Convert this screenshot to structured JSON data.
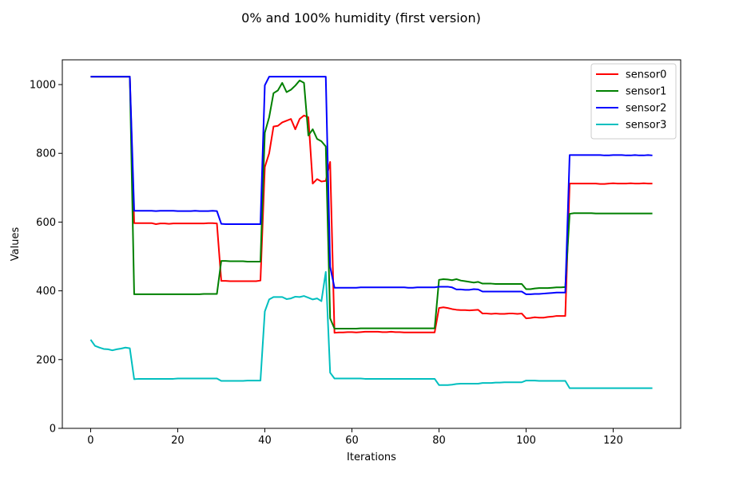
{
  "chart_data": {
    "type": "line",
    "title": "0% and 100% humidity (first version)",
    "xlabel": "Iterations",
    "ylabel": "Values",
    "xlim": [
      -6.5,
      135.5
    ],
    "ylim": [
      0,
      1072
    ],
    "xticks": [
      0,
      20,
      40,
      60,
      80,
      100,
      120
    ],
    "yticks": [
      0,
      200,
      400,
      600,
      800,
      1000
    ],
    "legend_position": "top-right",
    "series": [
      {
        "name": "sensor0",
        "color": "#ff0000",
        "values": [
          1023,
          1023,
          1023,
          1023,
          1023,
          1023,
          1023,
          1023,
          1023,
          1023,
          597,
          597,
          597,
          597,
          597,
          594,
          596,
          596,
          595,
          596,
          596,
          596,
          596,
          596,
          596,
          596,
          596,
          597,
          597,
          596,
          429,
          429,
          428,
          428,
          428,
          428,
          428,
          428,
          428,
          430,
          760,
          800,
          878,
          880,
          890,
          895,
          900,
          870,
          900,
          910,
          905,
          712,
          725,
          718,
          720,
          775,
          278,
          279,
          279,
          280,
          280,
          279,
          280,
          281,
          281,
          281,
          281,
          280,
          280,
          281,
          280,
          280,
          279,
          279,
          279,
          279,
          279,
          279,
          279,
          279,
          350,
          352,
          350,
          347,
          345,
          344,
          344,
          343,
          344,
          345,
          334,
          334,
          333,
          334,
          333,
          333,
          334,
          334,
          333,
          334,
          320,
          321,
          323,
          322,
          322,
          324,
          325,
          327,
          327,
          327,
          712,
          712,
          712,
          712,
          712,
          712,
          712,
          711,
          711,
          712,
          713,
          712,
          712,
          712,
          713,
          712,
          712,
          713,
          712,
          712
        ]
      },
      {
        "name": "sensor1",
        "color": "#008000",
        "values": [
          1023,
          1023,
          1023,
          1023,
          1023,
          1023,
          1023,
          1023,
          1023,
          1023,
          390,
          390,
          390,
          390,
          390,
          390,
          390,
          390,
          390,
          390,
          390,
          390,
          390,
          390,
          390,
          390,
          391,
          391,
          391,
          391,
          487,
          487,
          486,
          486,
          486,
          486,
          485,
          485,
          485,
          485,
          860,
          905,
          975,
          983,
          1005,
          978,
          985,
          997,
          1012,
          1005,
          852,
          870,
          842,
          835,
          820,
          320,
          290,
          290,
          290,
          290,
          290,
          290,
          291,
          291,
          291,
          291,
          291,
          291,
          291,
          291,
          291,
          291,
          291,
          291,
          291,
          291,
          291,
          291,
          291,
          291,
          432,
          434,
          433,
          431,
          434,
          430,
          428,
          426,
          424,
          426,
          421,
          421,
          421,
          420,
          420,
          420,
          420,
          420,
          420,
          420,
          405,
          405,
          407,
          408,
          408,
          408,
          409,
          410,
          410,
          411,
          624,
          626,
          626,
          626,
          626,
          626,
          625,
          625,
          625,
          625,
          625,
          625,
          625,
          625,
          625,
          625,
          625,
          625,
          625,
          625
        ]
      },
      {
        "name": "sensor2",
        "color": "#0000ff",
        "values": [
          1023,
          1023,
          1023,
          1023,
          1023,
          1023,
          1023,
          1023,
          1023,
          1023,
          633,
          633,
          633,
          633,
          633,
          632,
          633,
          633,
          633,
          633,
          632,
          632,
          632,
          632,
          633,
          632,
          632,
          632,
          633,
          632,
          595,
          594,
          594,
          594,
          594,
          594,
          594,
          594,
          594,
          594,
          998,
          1023,
          1023,
          1023,
          1023,
          1023,
          1023,
          1023,
          1023,
          1023,
          1023,
          1023,
          1023,
          1023,
          1023,
          470,
          409,
          409,
          409,
          409,
          409,
          409,
          410,
          410,
          410,
          410,
          410,
          410,
          410,
          410,
          410,
          410,
          410,
          409,
          409,
          410,
          410,
          410,
          410,
          410,
          412,
          412,
          412,
          410,
          404,
          404,
          403,
          403,
          405,
          404,
          398,
          398,
          398,
          398,
          398,
          398,
          398,
          398,
          398,
          398,
          390,
          390,
          391,
          391,
          392,
          393,
          394,
          395,
          395,
          395,
          795,
          795,
          795,
          795,
          795,
          795,
          795,
          795,
          794,
          794,
          795,
          795,
          795,
          794,
          794,
          795,
          794,
          794,
          795,
          794
        ]
      },
      {
        "name": "sensor3",
        "color": "#00bfbf",
        "values": [
          258,
          240,
          235,
          231,
          230,
          227,
          230,
          232,
          235,
          233,
          143,
          144,
          144,
          144,
          144,
          144,
          144,
          144,
          144,
          144,
          145,
          145,
          145,
          145,
          145,
          145,
          145,
          145,
          145,
          145,
          138,
          138,
          138,
          138,
          138,
          138,
          139,
          139,
          139,
          139,
          340,
          375,
          382,
          382,
          382,
          376,
          378,
          383,
          382,
          385,
          380,
          375,
          378,
          370,
          455,
          162,
          145,
          145,
          145,
          145,
          145,
          145,
          145,
          144,
          144,
          144,
          144,
          144,
          144,
          144,
          144,
          144,
          144,
          144,
          144,
          144,
          144,
          144,
          144,
          144,
          126,
          126,
          126,
          127,
          129,
          130,
          130,
          130,
          130,
          130,
          132,
          132,
          132,
          133,
          133,
          134,
          134,
          134,
          134,
          134,
          139,
          139,
          139,
          138,
          138,
          138,
          138,
          138,
          138,
          138,
          117,
          117,
          117,
          117,
          117,
          117,
          117,
          117,
          117,
          117,
          117,
          117,
          117,
          117,
          117,
          117,
          117,
          117,
          117,
          117
        ]
      }
    ]
  }
}
